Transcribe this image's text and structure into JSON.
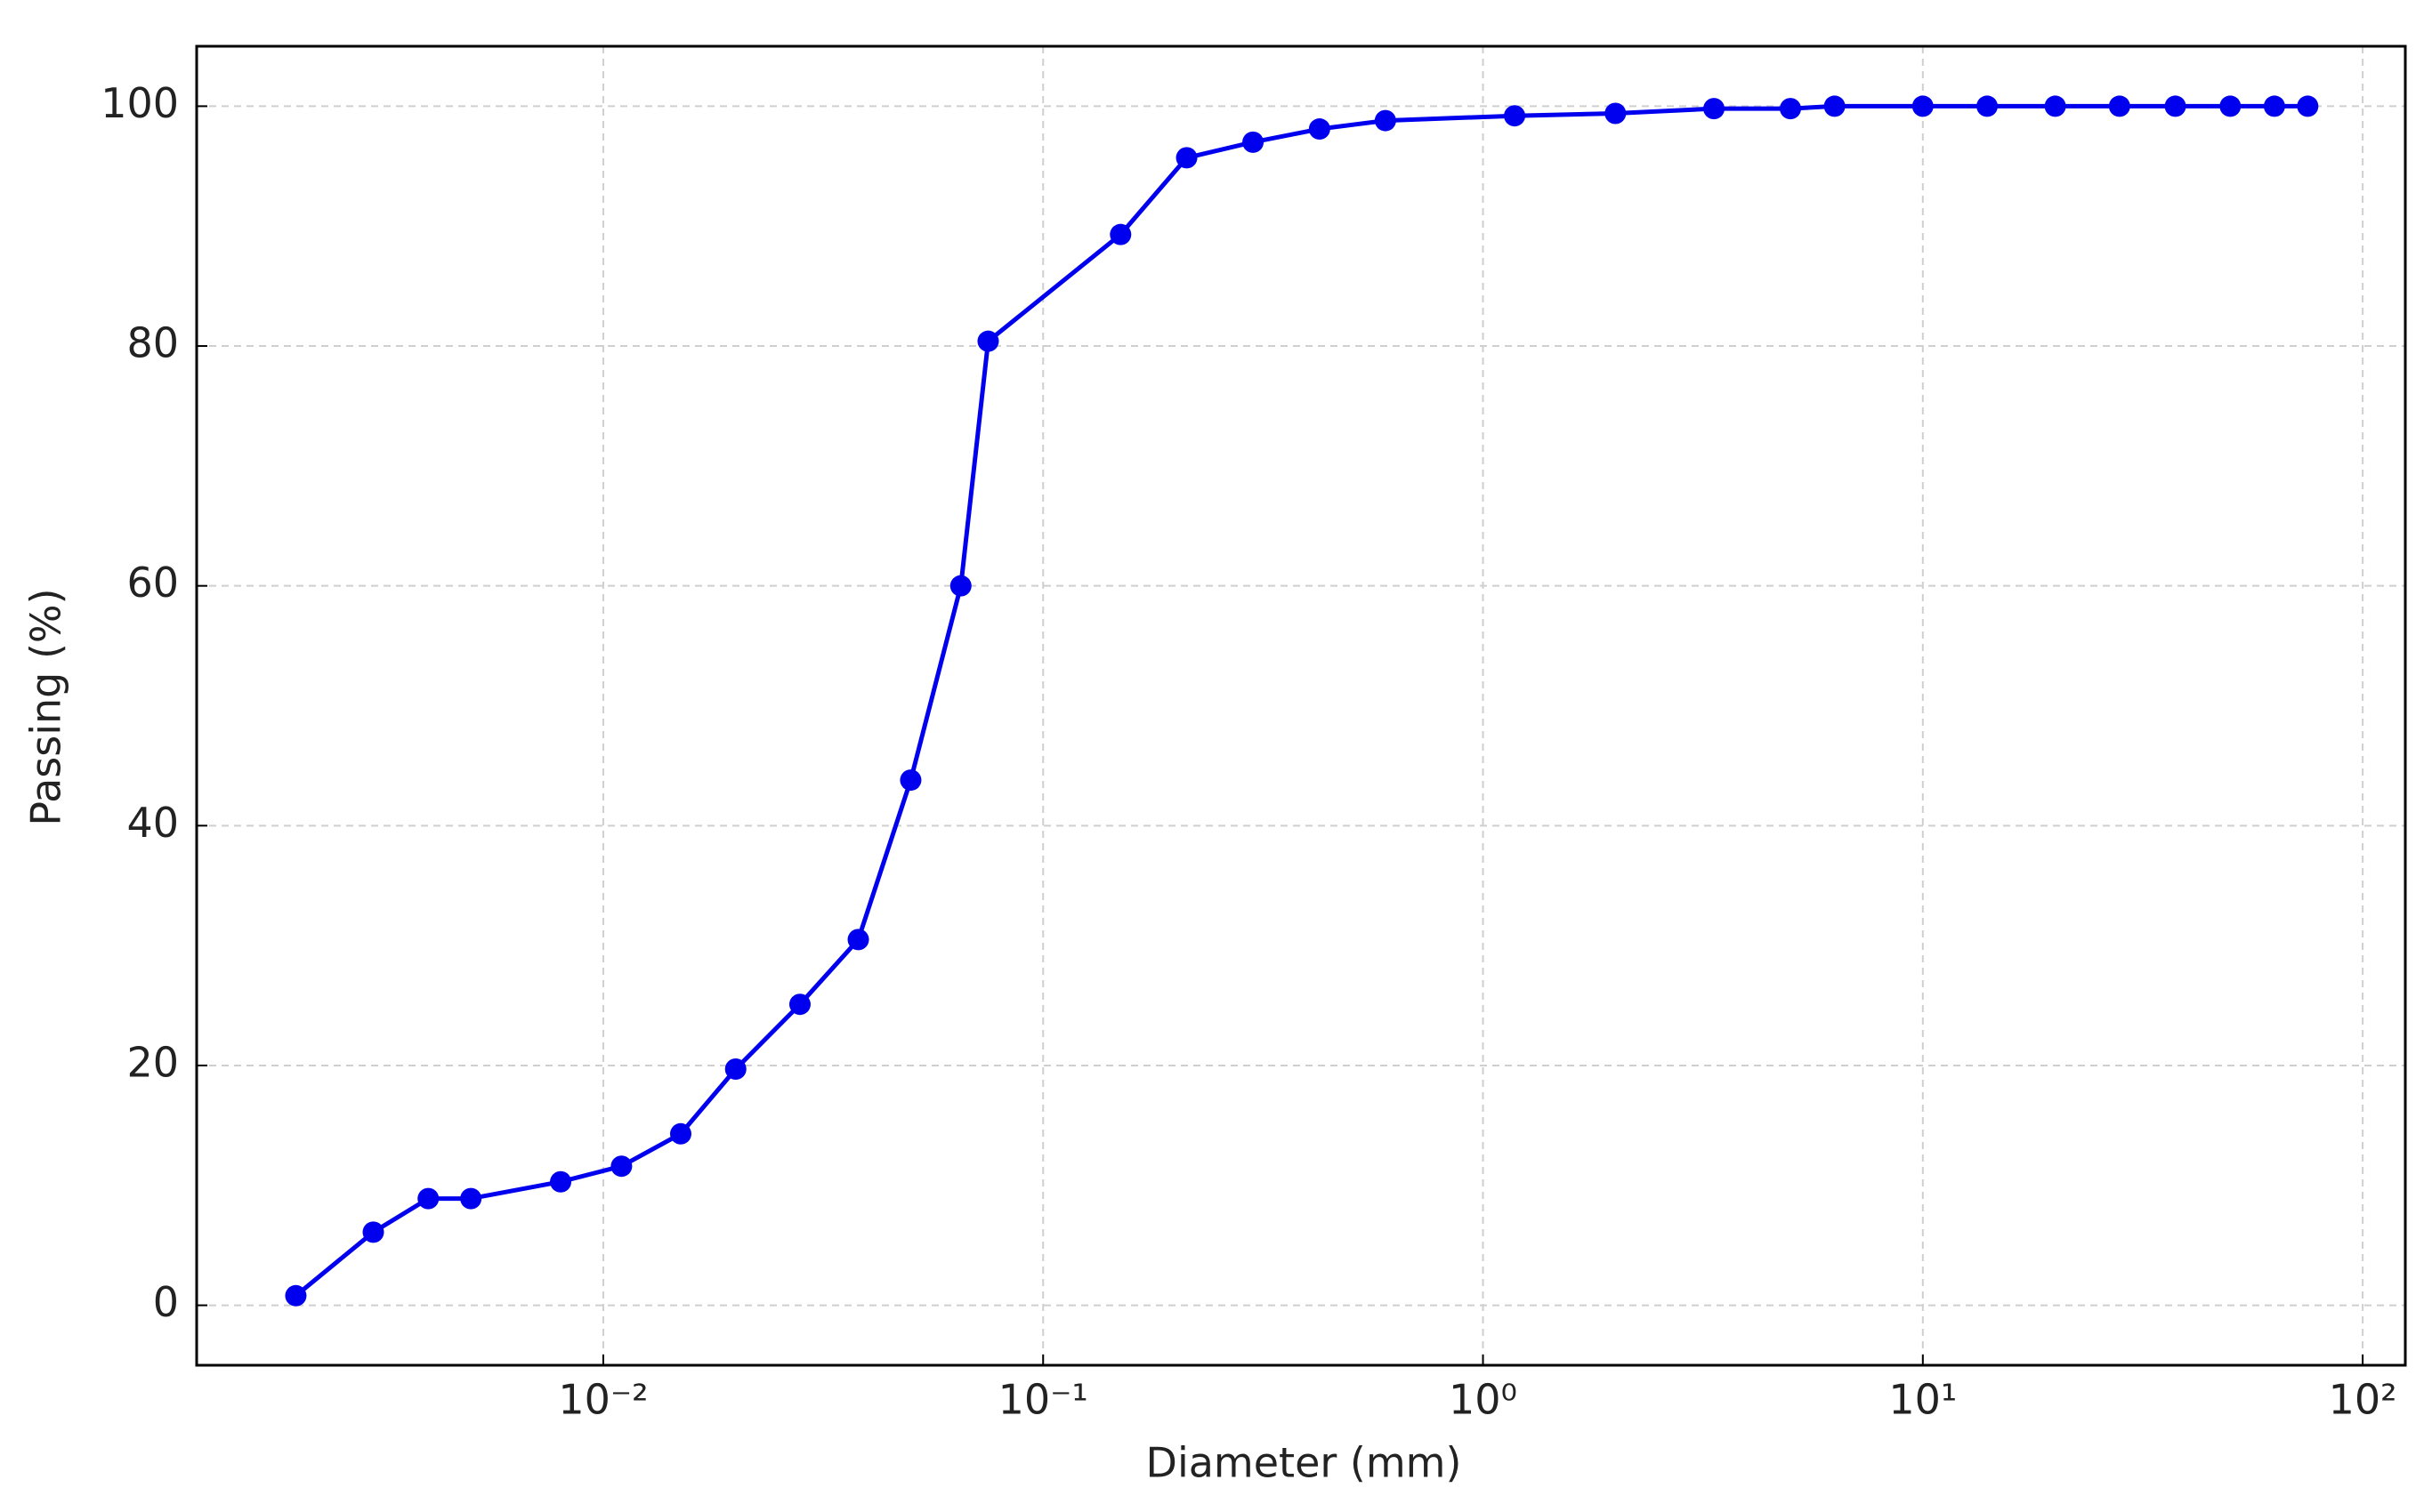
{
  "chart_data": {
    "type": "line",
    "xlabel": "Diameter (mm)",
    "ylabel": "Passing (%)",
    "x_scale": "log",
    "x": [
      0.002,
      0.003,
      0.004,
      0.005,
      0.008,
      0.011,
      0.015,
      0.02,
      0.028,
      0.038,
      0.05,
      0.065,
      0.075,
      0.15,
      0.212,
      0.3,
      0.425,
      0.6,
      1.18,
      2.0,
      3.35,
      5.0,
      6.3,
      10,
      14,
      20,
      28,
      37.5,
      50,
      63,
      75
    ],
    "series": [
      {
        "name": "Passing",
        "color": "#0000ee",
        "values": [
          0.8,
          6.1,
          8.9,
          8.9,
          10.3,
          11.6,
          14.3,
          19.7,
          25.1,
          30.5,
          43.8,
          60,
          80.4,
          89.3,
          95.7,
          97,
          98.1,
          98.8,
          99.2,
          99.4,
          99.8,
          99.8,
          100,
          100,
          100,
          100,
          100,
          100,
          100,
          100,
          100
        ]
      }
    ],
    "xlim": [
      0.00119,
      125
    ],
    "xticks": [
      {
        "value": 0.01,
        "label": "10⁻²"
      },
      {
        "value": 0.1,
        "label": "10⁻¹"
      },
      {
        "value": 1,
        "label": "10⁰"
      },
      {
        "value": 10,
        "label": "10¹"
      },
      {
        "value": 100,
        "label": "10²"
      }
    ],
    "ylim": [
      -5,
      105
    ],
    "yticks": [
      0,
      20,
      40,
      60,
      80,
      100
    ],
    "grid": true
  }
}
